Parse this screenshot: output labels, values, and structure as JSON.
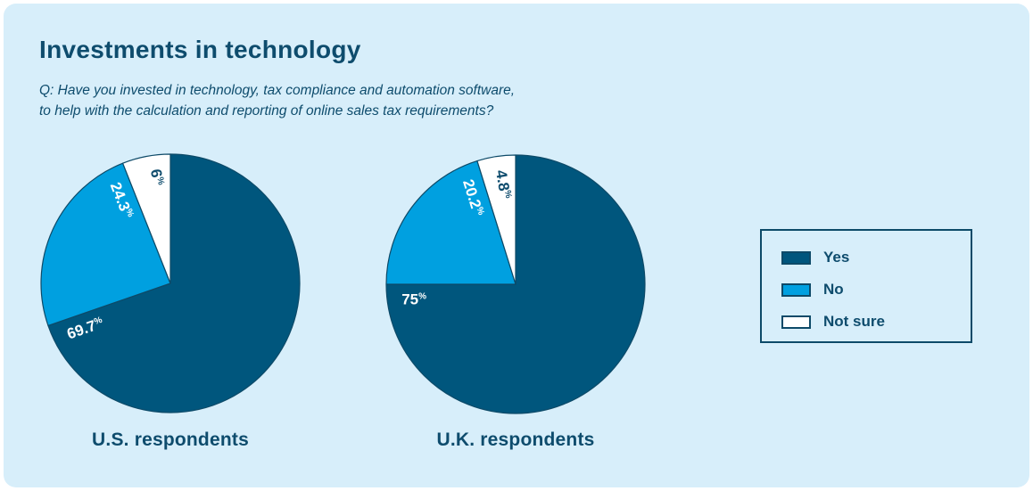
{
  "card": {
    "title": "Investments in technology",
    "subtitle": [
      "Q: Have you invested in technology, tax compliance and automation software,",
      "to help with the calculation and reporting of online sales tax requirements?"
    ]
  },
  "colors": {
    "page_background": "#ffffff",
    "card_background": "#d7eefa",
    "yes": "#00567d",
    "no": "#00a0e0",
    "not_sure": "#ffffff",
    "line": "#0d4a68",
    "text": "#0e4c6d"
  },
  "legend": {
    "position": "right",
    "items": [
      {
        "label": "Yes",
        "color": "yes"
      },
      {
        "label": "No",
        "color": "no"
      },
      {
        "label": "Not sure",
        "color": "not_sure"
      }
    ]
  },
  "chart_data": [
    {
      "type": "pie",
      "title": "U.S. respondents",
      "categories": [
        "Yes",
        "No",
        "Not sure"
      ],
      "values": [
        69.7,
        24.3,
        6.0
      ],
      "labels": [
        "69.7%",
        "24.3%",
        "6%"
      ],
      "slice_color_keys": [
        "yes",
        "no",
        "not_sure"
      ],
      "label_colors": [
        "#ffffff",
        "#ffffff",
        "#0e4c6d"
      ],
      "start_angle_deg": 0,
      "direction": "clockwise"
    },
    {
      "type": "pie",
      "title": "U.K. respondents",
      "categories": [
        "Yes",
        "No",
        "Not sure"
      ],
      "values": [
        75.0,
        20.2,
        4.8
      ],
      "labels": [
        "75%",
        "20.2%",
        "4.8%"
      ],
      "slice_color_keys": [
        "yes",
        "no",
        "not_sure"
      ],
      "label_colors": [
        "#ffffff",
        "#ffffff",
        "#0e4c6d"
      ],
      "start_angle_deg": 0,
      "direction": "clockwise"
    }
  ]
}
